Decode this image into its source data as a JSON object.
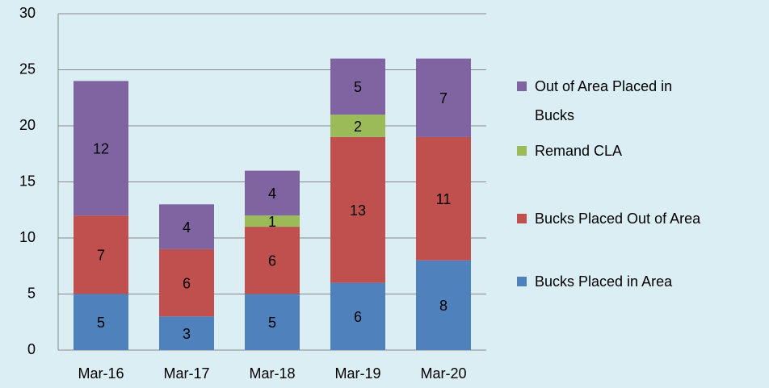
{
  "chart_data": {
    "type": "stacked_bar",
    "categories": [
      "Mar-16",
      "Mar-17",
      "Mar-18",
      "Mar-19",
      "Mar-20"
    ],
    "series": [
      {
        "name": "Bucks Placed in Area",
        "color": "#4f81bd",
        "values": [
          5,
          3,
          5,
          6,
          8
        ]
      },
      {
        "name": "Bucks Placed Out of Area",
        "color": "#c0504d",
        "values": [
          7,
          6,
          6,
          13,
          11
        ]
      },
      {
        "name": "Remand CLA",
        "color": "#9bbb59",
        "values": [
          null,
          null,
          1,
          2,
          null
        ]
      },
      {
        "name": "Out of Area Placed in Bucks",
        "color": "#8064a2",
        "values": [
          12,
          4,
          4,
          5,
          7
        ]
      }
    ],
    "ylim": [
      0,
      30
    ],
    "yticks": [
      0,
      5,
      10,
      15,
      20,
      25,
      30
    ],
    "grid": true,
    "legend": "right"
  }
}
